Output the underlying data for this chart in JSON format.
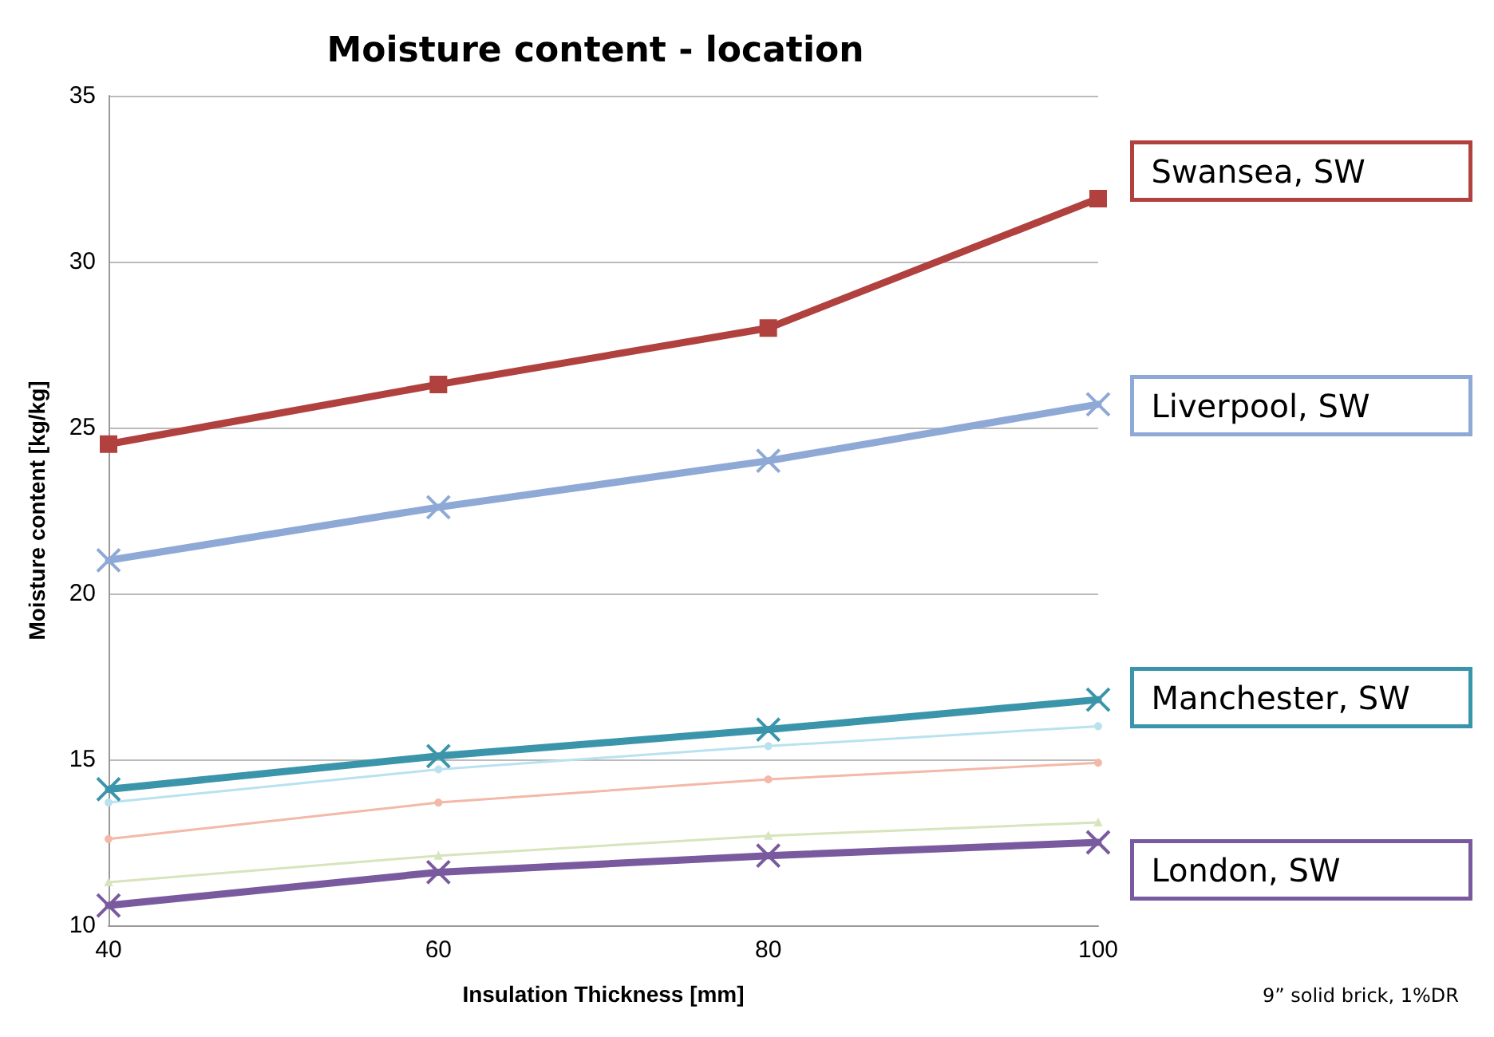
{
  "chart_data": {
    "type": "line",
    "title": "Moisture content - location",
    "xlabel": "Insulation Thickness [mm]",
    "ylabel": "Moisture content [kg/kg]",
    "x": [
      40,
      60,
      80,
      100
    ],
    "xlim": [
      40,
      100
    ],
    "xticks": [
      40,
      60,
      80,
      100
    ],
    "ylim": [
      10,
      35
    ],
    "yticks": [
      10,
      15,
      20,
      25,
      30,
      35
    ],
    "grid": "y",
    "legend": "right",
    "annotations": [
      "9” solid brick, 1%DR"
    ],
    "series": [
      {
        "name": "Swansea, SW",
        "color": "#b0413e",
        "marker": "square",
        "values": [
          24.5,
          26.3,
          28.0,
          31.9
        ]
      },
      {
        "name": "Liverpool, SW",
        "color": "#8ea9d6",
        "marker": "cross",
        "values": [
          21.0,
          22.6,
          24.0,
          25.7
        ]
      },
      {
        "color": "#b9e2ef",
        "marker": "circle",
        "values": [
          13.7,
          14.7,
          15.4,
          16.0
        ]
      },
      {
        "color": "#f4b8a8",
        "marker": "circle",
        "values": [
          12.6,
          13.7,
          14.4,
          14.9
        ]
      },
      {
        "color": "#d7e4bc",
        "marker": "triangle",
        "values": [
          11.3,
          12.1,
          12.7,
          13.1
        ]
      },
      {
        "name": "Manchester, SW",
        "color": "#3a95aa",
        "marker": "cross",
        "values": [
          14.1,
          15.1,
          15.9,
          16.8
        ]
      },
      {
        "name": "London, SW",
        "color": "#7a5a9e",
        "marker": "cross",
        "values": [
          10.6,
          11.6,
          12.1,
          12.5
        ]
      }
    ]
  }
}
